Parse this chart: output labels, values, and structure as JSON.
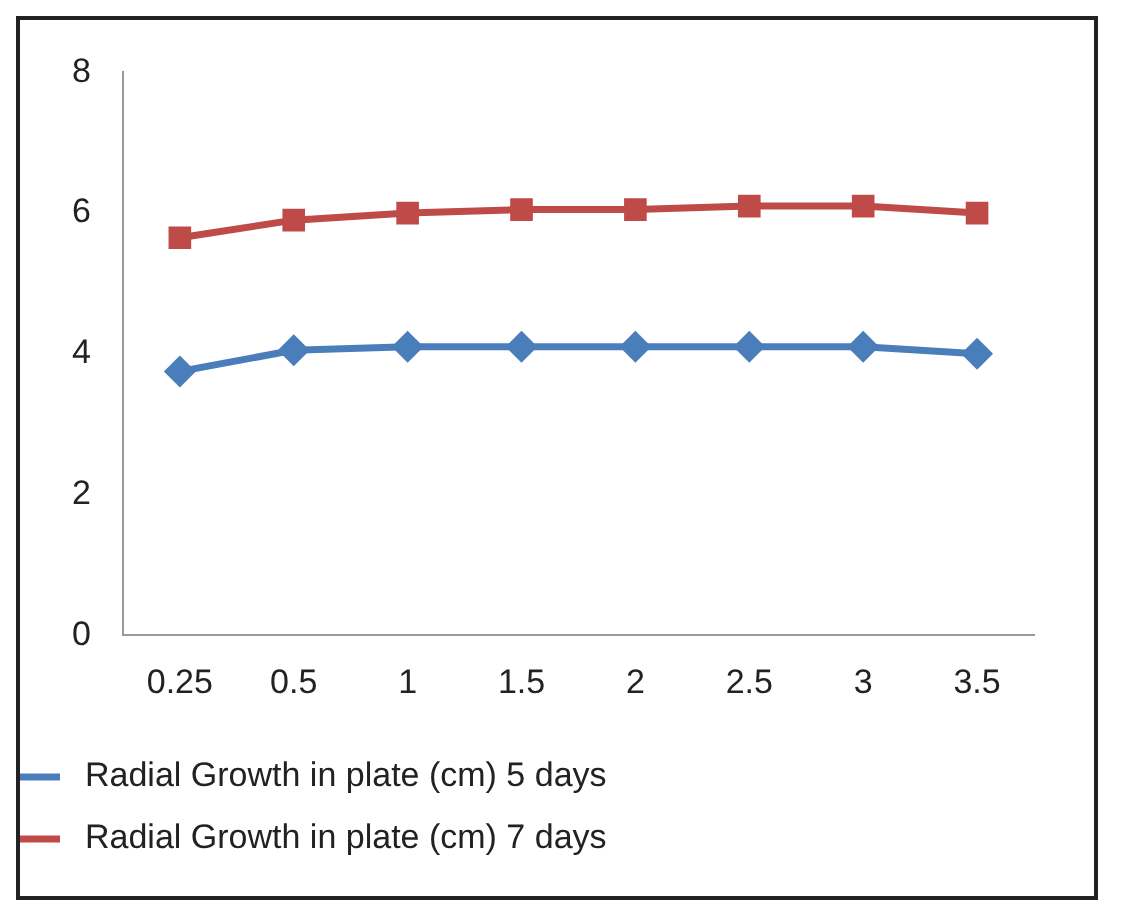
{
  "chart_data": {
    "type": "line",
    "categories": [
      "0.25",
      "0.5",
      "1",
      "1.5",
      "2",
      "2.5",
      "3",
      "3.5"
    ],
    "series": [
      {
        "name": "Radial Growth in plate (cm) 5 days",
        "color": "#4a7ebb",
        "marker": "diamond",
        "values": [
          3.75,
          4.05,
          4.1,
          4.1,
          4.1,
          4.1,
          4.1,
          4.0
        ]
      },
      {
        "name": "Radial Growth in plate (cm) 7 days",
        "color": "#be4b48",
        "marker": "square",
        "values": [
          5.65,
          5.9,
          6.0,
          6.05,
          6.05,
          6.1,
          6.1,
          6.0
        ]
      }
    ],
    "ylim": [
      0,
      8
    ],
    "yticks": [
      0,
      2,
      4,
      6,
      8
    ],
    "grid": false,
    "legend": "bottom",
    "line_style": "solid"
  }
}
